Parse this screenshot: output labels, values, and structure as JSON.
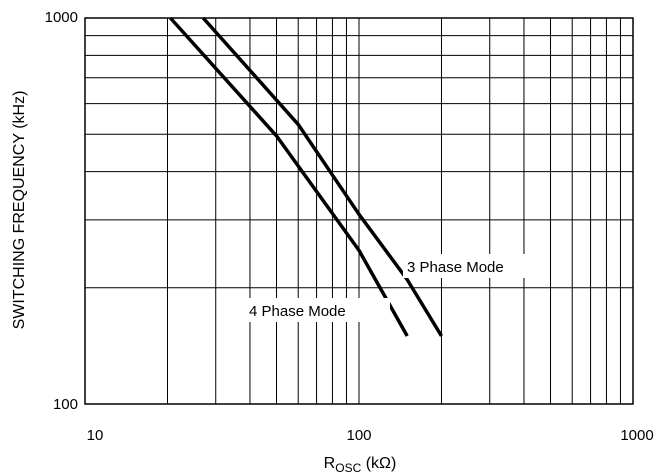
{
  "chart_data": {
    "type": "line",
    "title": "",
    "xlabel_main": "R",
    "xlabel_sub": "OSC",
    "xlabel_unit": " (kΩ)",
    "ylabel": "SWITCHING FREQUENCY (kHz)",
    "xscale": "log",
    "yscale": "log",
    "xlim": [
      10,
      1000
    ],
    "ylim": [
      100,
      1000
    ],
    "x_ticks": [
      "10",
      "100",
      "1000"
    ],
    "y_ticks": [
      "100",
      "1000"
    ],
    "grid": true,
    "series": [
      {
        "name": "3 Phase Mode",
        "points": [
          [
            27,
            1000
          ],
          [
            60,
            530
          ],
          [
            100,
            310
          ],
          [
            150,
            210
          ],
          [
            200,
            150
          ]
        ]
      },
      {
        "name": "4 Phase Mode",
        "points": [
          [
            20.5,
            1000
          ],
          [
            50,
            495
          ],
          [
            100,
            250
          ],
          [
            150,
            150
          ]
        ]
      }
    ],
    "line_color": "#000000"
  }
}
